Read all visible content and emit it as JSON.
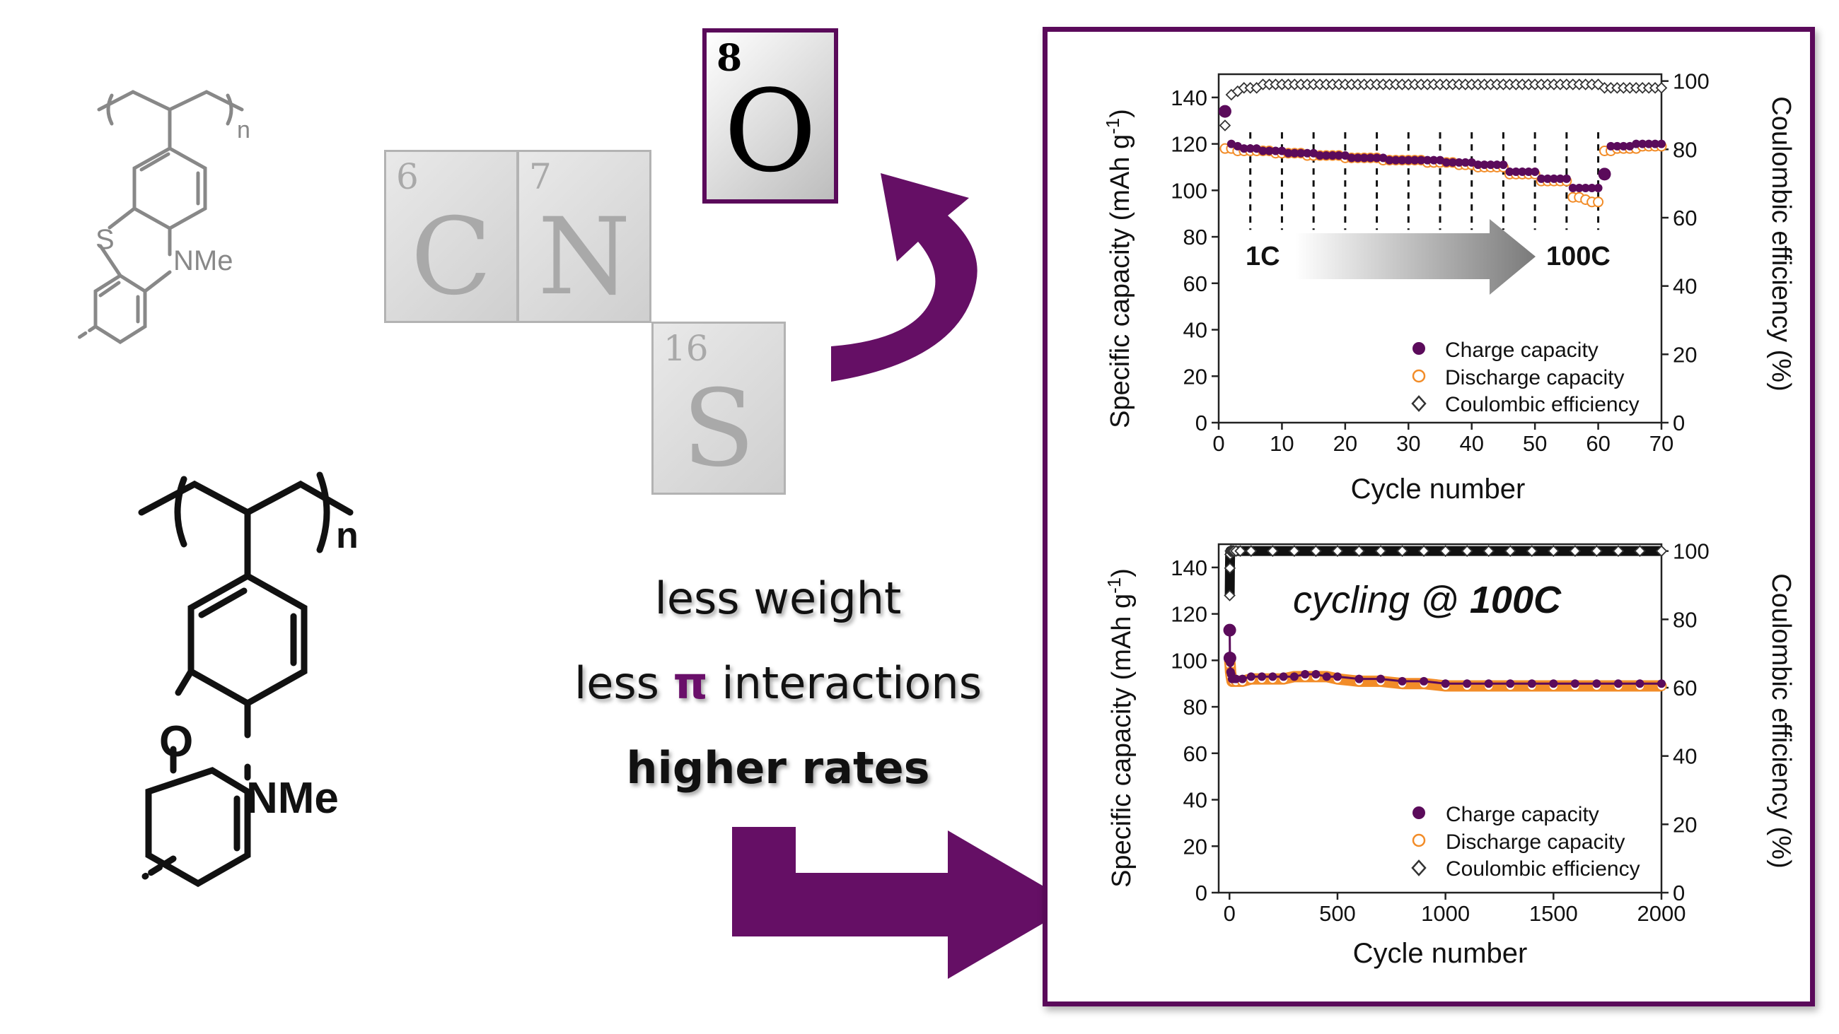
{
  "molecule_top": {
    "nme_label": "NMe",
    "s_label": "S",
    "n_label": "n"
  },
  "molecule_bottom": {
    "nme_label": "NMe",
    "o_label": "O",
    "n_label": "n"
  },
  "tiles": [
    {
      "number": "6",
      "symbol": "C"
    },
    {
      "number": "7",
      "symbol": "N"
    },
    {
      "number": "16",
      "symbol": "S"
    },
    {
      "number": "8",
      "symbol": "O"
    }
  ],
  "slogan": {
    "line1": "less weight",
    "line2_pre": "less ",
    "line2_pi": "π",
    "line2_post": " interactions",
    "line3": "higher rates"
  },
  "colors": {
    "purple": "#5a0a5a",
    "arrow_purple": "#650f65",
    "charge": "#5b0b5b",
    "discharge": "#f28c28",
    "efficiency": "#333333"
  },
  "chart_data": [
    {
      "type": "scatter",
      "xlabel": "Cycle number",
      "ylabel": "Specific capacity (mAh g",
      "ylabel_sup": "-1",
      "ylabel_close": ")",
      "y2label": "Coulombic efficiency (%)",
      "xlim": [
        0,
        70
      ],
      "ylim": [
        0,
        150
      ],
      "y2lim": [
        0,
        102
      ],
      "xticks": [
        0,
        10,
        20,
        30,
        40,
        50,
        60,
        70
      ],
      "yticks": [
        0,
        20,
        40,
        60,
        80,
        100,
        120,
        140
      ],
      "y2ticks": [
        0,
        20,
        40,
        60,
        80,
        100
      ],
      "rate_start": "1C",
      "rate_end": "100C",
      "step_dividers": [
        5,
        10,
        15,
        20,
        25,
        30,
        35,
        40,
        45,
        50,
        55,
        60
      ],
      "legend_position": "bottom-right",
      "series": [
        {
          "name": "Charge capacity",
          "marker": "filled-circle",
          "axis": "left",
          "values": [
            134,
            120,
            119,
            118,
            118,
            118,
            117,
            117,
            117,
            117,
            116,
            116,
            116,
            116,
            116,
            115,
            115,
            115,
            115,
            115,
            114,
            114,
            114,
            114,
            114,
            114,
            113,
            113,
            113,
            113,
            113,
            113,
            113,
            113,
            113,
            112,
            112,
            112,
            112,
            112,
            111,
            111,
            111,
            111,
            111,
            108,
            108,
            108,
            108,
            108,
            105,
            105,
            105,
            105,
            105,
            101,
            101,
            101,
            101,
            101,
            107,
            119,
            119,
            119,
            119,
            120,
            120,
            120,
            120,
            120
          ]
        },
        {
          "name": "Discharge capacity",
          "marker": "open-circle",
          "axis": "left",
          "values": [
            118,
            118,
            117,
            117,
            117,
            117,
            117,
            117,
            116,
            116,
            116,
            116,
            116,
            115,
            115,
            115,
            115,
            115,
            115,
            114,
            114,
            114,
            114,
            114,
            114,
            113,
            113,
            113,
            113,
            113,
            113,
            113,
            112,
            112,
            112,
            112,
            112,
            111,
            111,
            111,
            110,
            110,
            110,
            110,
            110,
            107,
            107,
            107,
            107,
            107,
            104,
            104,
            104,
            104,
            104,
            97,
            97,
            96,
            95,
            95,
            117,
            117,
            118,
            118,
            118,
            118,
            119,
            119,
            119,
            119
          ]
        },
        {
          "name": "Coulombic efficiency",
          "marker": "open-diamond",
          "axis": "right",
          "values": [
            87,
            96,
            97,
            98,
            98,
            98,
            99,
            99,
            99,
            99,
            99,
            99,
            99,
            99,
            99,
            99,
            99,
            99,
            99,
            99,
            99,
            99,
            99,
            99,
            99,
            99,
            99,
            99,
            99,
            99,
            99,
            99,
            99,
            99,
            99,
            99,
            99,
            99,
            99,
            99,
            99,
            99,
            99,
            99,
            99,
            99,
            99,
            99,
            99,
            99,
            99,
            99,
            99,
            99,
            99,
            99,
            99,
            99,
            99,
            99,
            98,
            98,
            98,
            98,
            98,
            98,
            98,
            98,
            98,
            98
          ]
        }
      ]
    },
    {
      "type": "scatter",
      "xlabel": "Cycle number",
      "ylabel": "Specific capacity (mAh g",
      "ylabel_sup": "-1",
      "ylabel_close": ")",
      "y2label": "Coulombic efficiency (%)",
      "xlim": [
        -50,
        2000
      ],
      "ylim": [
        0,
        150
      ],
      "y2lim": [
        0,
        102
      ],
      "xticks": [
        0,
        500,
        1000,
        1500,
        2000
      ],
      "yticks": [
        0,
        20,
        40,
        60,
        80,
        100,
        120,
        140
      ],
      "y2ticks": [
        0,
        20,
        40,
        60,
        80,
        100
      ],
      "annotation": "cycling @ ",
      "annotation_bold": "100C",
      "legend_position": "bottom-right",
      "series": [
        {
          "name": "Charge capacity",
          "marker": "filled-circle",
          "axis": "left",
          "x": [
            1,
            2,
            3,
            5,
            8,
            12,
            18,
            30,
            60,
            100,
            150,
            200,
            250,
            300,
            350,
            400,
            450,
            500,
            600,
            700,
            800,
            900,
            1000,
            1100,
            1200,
            1300,
            1400,
            1500,
            1600,
            1700,
            1800,
            1900,
            2000
          ],
          "values": [
            113,
            101,
            99,
            95,
            94,
            92,
            92,
            92,
            92,
            93,
            93,
            93,
            93,
            93,
            94,
            94,
            93,
            93,
            92,
            92,
            91,
            91,
            90,
            90,
            90,
            90,
            90,
            90,
            90,
            90,
            90,
            90,
            90
          ]
        },
        {
          "name": "Discharge capacity",
          "marker": "open-circle",
          "axis": "left",
          "x": [
            1,
            2,
            3,
            5,
            8,
            12,
            18,
            30,
            60,
            100,
            150,
            200,
            250,
            300,
            350,
            400,
            450,
            500,
            600,
            700,
            800,
            900,
            1000,
            1100,
            1200,
            1300,
            1400,
            1500,
            1600,
            1700,
            1800,
            1900,
            2000
          ],
          "values": [
            100,
            99,
            98,
            95,
            93,
            91,
            91,
            91,
            91,
            92,
            92,
            92,
            92,
            93,
            93,
            93,
            93,
            92,
            91,
            91,
            90,
            90,
            89,
            89,
            89,
            89,
            89,
            89,
            89,
            89,
            89,
            89,
            89
          ]
        },
        {
          "name": "Coulombic efficiency",
          "marker": "open-diamond",
          "axis": "right",
          "x": [
            1,
            2,
            3,
            4,
            6,
            8,
            10,
            15,
            20,
            30,
            50,
            100,
            200,
            300,
            400,
            500,
            600,
            700,
            800,
            900,
            1000,
            1100,
            1200,
            1300,
            1400,
            1500,
            1600,
            1700,
            1800,
            1900,
            2000
          ],
          "values": [
            87,
            95,
            99,
            100,
            100,
            100,
            100,
            100,
            100,
            100,
            100,
            100,
            100,
            100,
            100,
            100,
            100,
            100,
            100,
            100,
            100,
            100,
            100,
            100,
            100,
            100,
            100,
            100,
            100,
            100,
            100
          ]
        }
      ]
    }
  ]
}
